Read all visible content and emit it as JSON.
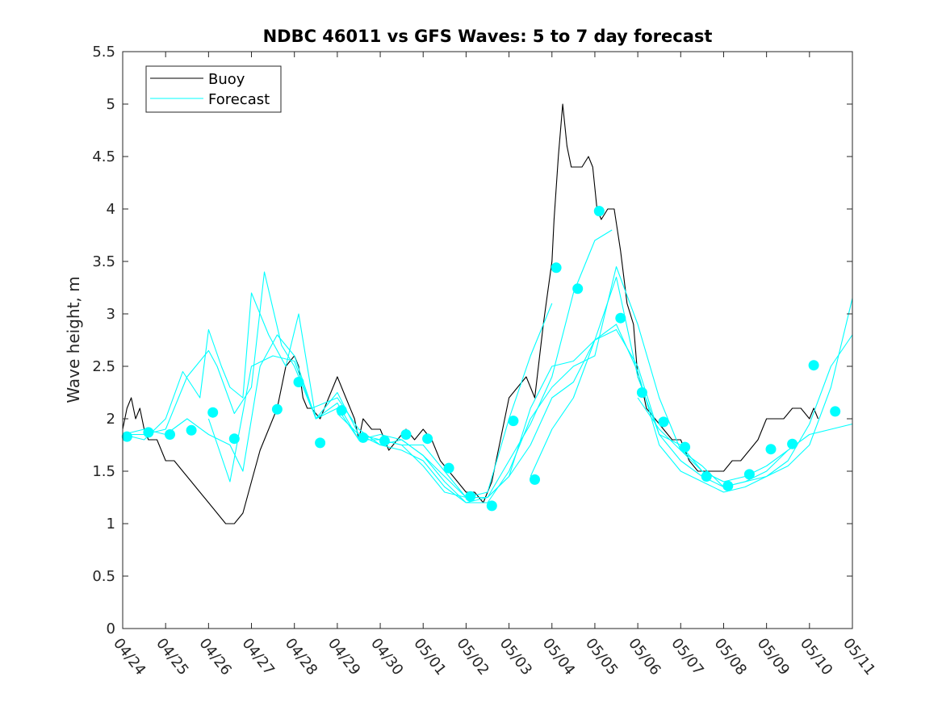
{
  "chart_data": {
    "type": "line",
    "title": "NDBC 46011 vs GFS Waves: 5 to 7 day forecast",
    "xlabel": "",
    "ylabel": "Wave height, m",
    "x_unit": "days",
    "xlim": [
      0,
      17
    ],
    "ylim": [
      0,
      5.5
    ],
    "yticks": [
      0,
      0.5,
      1,
      1.5,
      2,
      2.5,
      3,
      3.5,
      4,
      4.5,
      5,
      5.5
    ],
    "ytick_labels": [
      "0",
      "0.5",
      "1",
      "1.5",
      "2",
      "2.5",
      "3",
      "3.5",
      "4",
      "4.5",
      "5",
      "5.5"
    ],
    "xticks": [
      0,
      1,
      2,
      3,
      4,
      5,
      6,
      7,
      8,
      9,
      10,
      11,
      12,
      13,
      14,
      15,
      16,
      17
    ],
    "xtick_labels": [
      "04/24",
      "04/25",
      "04/26",
      "04/27",
      "04/28",
      "04/29",
      "04/30",
      "05/01",
      "05/02",
      "05/03",
      "05/04",
      "05/05",
      "05/06",
      "05/07",
      "05/08",
      "05/09",
      "05/10",
      "05/11"
    ],
    "grid": false,
    "legend": {
      "placement": "top-left",
      "entries": [
        "Buoy",
        "Forecast"
      ]
    },
    "colors": {
      "buoy": "#000000",
      "forecast": "#00ffff",
      "axes": "#262626"
    },
    "series": [
      {
        "name": "Buoy",
        "kind": "line",
        "x": [
          0,
          0.1,
          0.2,
          0.3,
          0.4,
          0.5,
          0.6,
          0.8,
          1.0,
          1.2,
          1.4,
          1.6,
          1.8,
          2.0,
          2.2,
          2.4,
          2.6,
          2.8,
          3.0,
          3.2,
          3.4,
          3.6,
          3.8,
          4.0,
          4.1,
          4.2,
          4.3,
          4.4,
          4.6,
          4.8,
          5.0,
          5.2,
          5.4,
          5.5,
          5.6,
          5.8,
          6.0,
          6.2,
          6.4,
          6.6,
          6.8,
          7.0,
          7.2,
          7.4,
          7.6,
          7.8,
          8.0,
          8.2,
          8.4,
          8.6,
          8.8,
          9.0,
          9.2,
          9.4,
          9.6,
          9.8,
          9.9,
          10.0,
          10.05,
          10.15,
          10.25,
          10.35,
          10.45,
          10.55,
          10.7,
          10.85,
          10.95,
          11.05,
          11.15,
          11.3,
          11.45,
          11.6,
          11.75,
          11.9,
          12.0,
          12.1,
          12.2,
          12.4,
          12.6,
          12.8,
          13.0,
          13.2,
          13.4,
          13.6,
          13.8,
          14.0,
          14.2,
          14.4,
          14.6,
          14.8,
          15.0,
          15.2,
          15.4,
          15.6,
          15.8,
          16.0,
          16.1,
          16.2
        ],
        "y": [
          1.9,
          2.1,
          2.2,
          2.0,
          2.1,
          1.9,
          1.8,
          1.8,
          1.6,
          1.6,
          1.5,
          1.4,
          1.3,
          1.2,
          1.1,
          1.0,
          1.0,
          1.1,
          1.4,
          1.7,
          1.9,
          2.1,
          2.5,
          2.6,
          2.5,
          2.2,
          2.1,
          2.1,
          2.0,
          2.2,
          2.4,
          2.2,
          2.0,
          1.8,
          2.0,
          1.9,
          1.9,
          1.7,
          1.8,
          1.9,
          1.8,
          1.9,
          1.8,
          1.6,
          1.5,
          1.4,
          1.3,
          1.3,
          1.2,
          1.4,
          1.8,
          2.2,
          2.3,
          2.4,
          2.2,
          2.9,
          3.2,
          3.5,
          3.9,
          4.5,
          5.0,
          4.6,
          4.4,
          4.4,
          4.4,
          4.5,
          4.4,
          4.0,
          3.9,
          4.0,
          4.0,
          3.6,
          3.1,
          2.9,
          2.4,
          2.3,
          2.1,
          2.0,
          1.9,
          1.8,
          1.8,
          1.6,
          1.5,
          1.5,
          1.5,
          1.5,
          1.6,
          1.6,
          1.7,
          1.8,
          2.0,
          2.0,
          2.0,
          2.1,
          2.1,
          2.0,
          2.1,
          2.0
        ]
      },
      {
        "name": "Forecast",
        "kind": "line",
        "x": [
          0,
          0.5,
          1.0,
          1.4,
          1.8,
          2.0,
          2.3,
          2.5,
          2.8,
          3.0,
          3.4,
          3.8,
          4.1,
          4.5,
          5.0,
          5.5,
          6.0,
          6.5,
          7.0,
          7.5,
          8.0,
          8.5,
          9.0,
          9.5,
          10.0
        ],
        "y": [
          1.85,
          1.8,
          2.0,
          2.45,
          2.2,
          2.85,
          2.5,
          2.3,
          2.2,
          3.2,
          2.8,
          2.5,
          3.0,
          2.0,
          2.1,
          1.8,
          1.8,
          1.75,
          1.55,
          1.3,
          1.25,
          1.3,
          2.0,
          2.6,
          3.1
        ]
      },
      {
        "name": "",
        "kind": "line",
        "x": [
          0,
          0.5,
          1.0,
          1.5,
          2.0,
          2.2,
          2.6,
          3.0,
          3.3,
          3.7,
          4.0,
          4.4,
          5.0,
          5.5,
          6.0,
          6.5,
          7.0,
          7.5,
          8.0,
          8.5,
          9.0,
          9.5,
          10.0,
          10.5,
          11.0,
          11.4
        ],
        "y": [
          1.85,
          1.85,
          1.9,
          2.4,
          2.65,
          2.5,
          2.05,
          2.3,
          3.4,
          2.7,
          2.5,
          2.1,
          2.2,
          1.9,
          1.75,
          1.8,
          1.65,
          1.45,
          1.25,
          1.25,
          1.6,
          1.95,
          2.4,
          3.2,
          3.7,
          3.8
        ]
      },
      {
        "name": "",
        "kind": "line",
        "x": [
          0,
          0.5,
          1.0,
          1.5,
          2.0,
          2.5,
          2.8,
          3.2,
          3.6,
          4.0,
          4.5,
          5.0,
          5.5,
          6.0,
          6.5,
          7.0,
          7.5,
          8.0,
          8.5,
          9.0,
          9.5,
          10.0,
          10.5,
          11.0,
          11.5,
          12.0,
          12.5,
          13.0,
          13.5,
          14.0
        ],
        "y": [
          1.85,
          1.9,
          1.85,
          2.0,
          1.85,
          1.75,
          1.5,
          2.5,
          2.8,
          2.6,
          2.0,
          2.25,
          1.85,
          1.8,
          1.75,
          1.75,
          1.5,
          1.25,
          1.25,
          1.45,
          2.1,
          2.5,
          2.55,
          2.75,
          3.35,
          2.4,
          1.85,
          1.75,
          1.5,
          1.4
        ]
      },
      {
        "name": "",
        "kind": "line",
        "x": [
          2.0,
          2.5,
          3.0,
          3.5,
          4.0,
          4.5,
          5.0,
          5.5,
          6.0,
          6.5,
          7.0,
          7.5,
          8.0,
          8.5,
          9.0,
          9.5,
          10.0,
          10.5,
          11.0,
          11.5,
          12.0,
          12.5,
          13.0,
          13.5,
          14.0,
          14.5,
          15.0,
          15.5
        ],
        "y": [
          2.0,
          1.4,
          2.5,
          2.6,
          2.55,
          2.0,
          2.15,
          1.8,
          1.85,
          1.8,
          1.65,
          1.4,
          1.2,
          1.2,
          1.5,
          2.0,
          2.3,
          2.5,
          2.6,
          3.45,
          2.9,
          2.2,
          1.7,
          1.55,
          1.35,
          1.4,
          1.5,
          1.7
        ]
      },
      {
        "name": "",
        "kind": "line",
        "x": [
          5.0,
          5.5,
          6.0,
          6.5,
          7.0,
          7.5,
          8.0,
          8.5,
          9.0,
          9.5,
          10.0,
          10.5,
          11.0,
          11.5,
          12.0,
          12.5,
          13.0,
          13.5,
          14.0,
          14.5,
          15.0,
          15.5,
          16.0,
          16.5,
          17.0
        ],
        "y": [
          2.05,
          1.85,
          1.75,
          1.7,
          1.6,
          1.35,
          1.2,
          1.25,
          1.45,
          1.75,
          2.2,
          2.35,
          2.75,
          2.9,
          2.45,
          1.75,
          1.5,
          1.4,
          1.3,
          1.35,
          1.45,
          1.55,
          1.75,
          2.3,
          3.15
        ]
      },
      {
        "name": "",
        "kind": "line",
        "x": [
          9.5,
          10.0,
          10.5,
          11.0,
          11.5,
          12.0,
          12.5,
          13.0,
          13.5,
          14.0,
          14.5,
          15.0,
          15.5,
          16.0,
          16.5,
          17.0
        ],
        "y": [
          1.45,
          1.9,
          2.2,
          2.75,
          2.85,
          2.5,
          1.85,
          1.6,
          1.45,
          1.35,
          1.4,
          1.45,
          1.6,
          1.95,
          2.5,
          2.8
        ]
      },
      {
        "name": "",
        "kind": "line",
        "x": [
          12.0,
          12.5,
          13.0,
          13.5,
          14.0,
          14.5,
          15.0,
          15.5,
          16.0,
          16.5,
          17.0
        ],
        "y": [
          2.2,
          1.9,
          1.7,
          1.5,
          1.4,
          1.45,
          1.55,
          1.7,
          1.85,
          1.9,
          1.95
        ]
      },
      {
        "name": "",
        "kind": "scatter",
        "x": [
          0.1,
          0.6,
          1.1,
          1.6,
          2.1,
          2.6,
          3.6,
          4.1,
          4.6,
          5.1,
          5.6,
          6.1,
          6.6,
          7.1,
          7.6,
          8.1,
          8.6,
          9.1,
          9.6,
          10.1,
          10.6,
          11.1,
          11.6,
          12.1,
          12.6,
          13.1,
          13.6,
          14.1,
          14.6,
          15.1,
          15.6,
          16.1,
          16.6
        ],
        "y": [
          1.83,
          1.87,
          1.85,
          1.89,
          2.06,
          1.81,
          2.09,
          2.35,
          1.77,
          2.08,
          1.82,
          1.79,
          1.85,
          1.81,
          1.53,
          1.26,
          1.17,
          1.98,
          1.42,
          3.44,
          3.24,
          3.98,
          2.96,
          2.25,
          1.97,
          1.73,
          1.45,
          1.36,
          1.47,
          1.71,
          1.76,
          2.51,
          2.07
        ]
      }
    ]
  }
}
